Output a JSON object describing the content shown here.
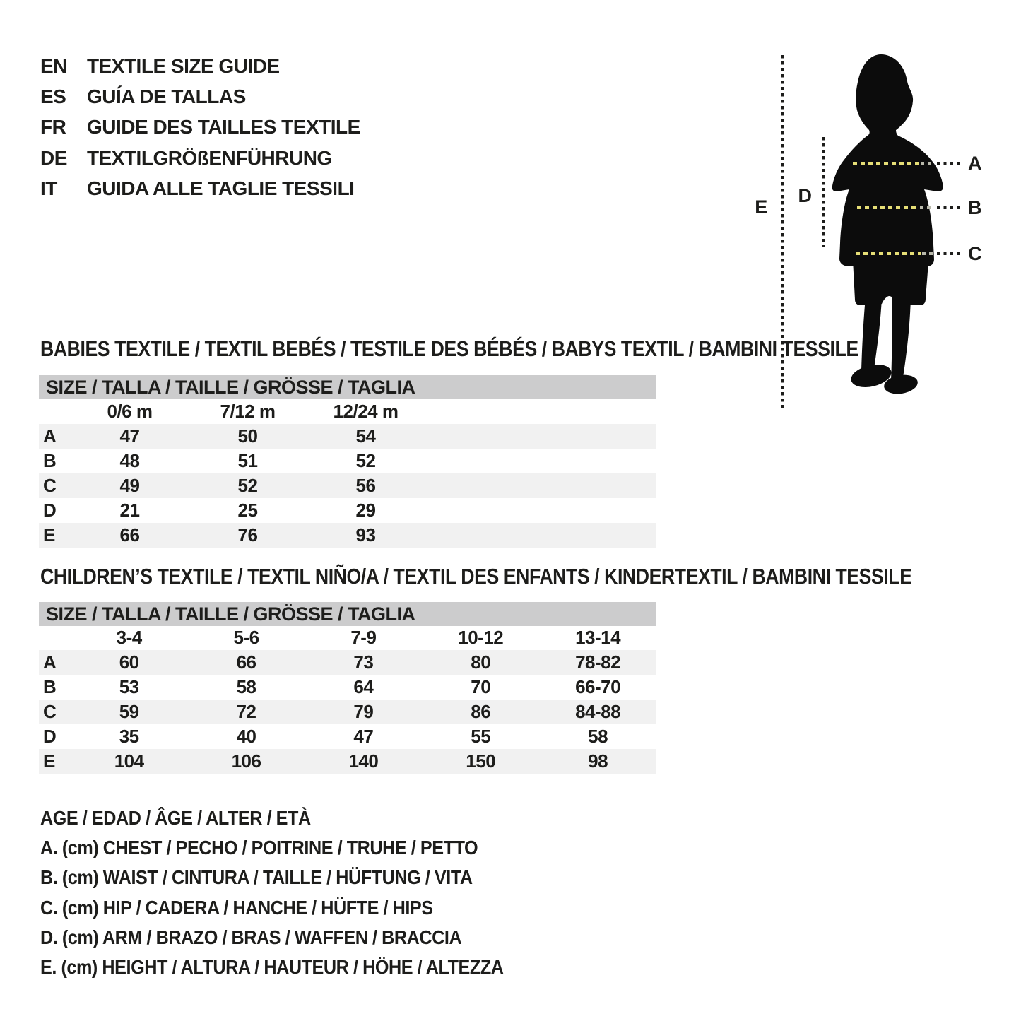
{
  "header": {
    "languages": [
      {
        "code": "EN",
        "title": "TEXTILE SIZE GUIDE"
      },
      {
        "code": "ES",
        "title": "GUÍA DE TALLAS"
      },
      {
        "code": "FR",
        "title": "GUIDE DES TAILLES TEXTILE"
      },
      {
        "code": "DE",
        "title": "TEXTILGRÖßENFÜHRUNG"
      },
      {
        "code": "IT",
        "title": "GUIDA ALLE TAGLIE TESSILI"
      }
    ]
  },
  "figure": {
    "labels": {
      "a": "A",
      "b": "B",
      "c": "C",
      "d": "D",
      "e": "E"
    },
    "dash_color": "#e6de76",
    "silhouette_color": "#0c0c0c"
  },
  "babies": {
    "title": "BABIES TEXTILE / TEXTIL BEBÉS / TESTILE DES BÉBÉS / BABYS TEXTIL / BAMBINI TESSILE",
    "size_header": "SIZE / TALLA / TAILLE / GRÖSSE / TAGLIA",
    "columns": [
      "0/6 m",
      "7/12 m",
      "12/24 m"
    ],
    "rows": [
      {
        "label": "A",
        "values": [
          "47",
          "50",
          "54"
        ]
      },
      {
        "label": "B",
        "values": [
          "48",
          "51",
          "52"
        ]
      },
      {
        "label": "C",
        "values": [
          "49",
          "52",
          "56"
        ]
      },
      {
        "label": "D",
        "values": [
          "21",
          "25",
          "29"
        ]
      },
      {
        "label": "E",
        "values": [
          "66",
          "76",
          "93"
        ]
      }
    ]
  },
  "children": {
    "title": "CHILDREN’S TEXTILE / TEXTIL NIÑO/A / TEXTIL DES ENFANTS / KINDERTEXTIL / BAMBINI TESSILE",
    "size_header": "SIZE / TALLA / TAILLE / GRÖSSE / TAGLIA",
    "columns": [
      "3-4",
      "5-6",
      "7-9",
      "10-12",
      "13-14"
    ],
    "rows": [
      {
        "label": "A",
        "values": [
          "60",
          "66",
          "73",
          "80",
          "78-82"
        ]
      },
      {
        "label": "B",
        "values": [
          "53",
          "58",
          "64",
          "70",
          "66-70"
        ]
      },
      {
        "label": "C",
        "values": [
          "59",
          "72",
          "79",
          "86",
          "84-88"
        ]
      },
      {
        "label": "D",
        "values": [
          "35",
          "40",
          "47",
          "55",
          "58"
        ]
      },
      {
        "label": "E",
        "values": [
          "104",
          "106",
          "140",
          "150",
          "98"
        ]
      }
    ]
  },
  "legend": {
    "lines": [
      "AGE / EDAD / ÂGE / ALTER / ETÀ",
      "A. (cm) CHEST / PECHO / POITRINE / TRUHE / PETTO",
      "B. (cm) WAIST / CINTURA / TAILLE / HÜFTUNG / VITA",
      "C. (cm) HIP / CADERA / HANCHE / HÜFTE / HIPS",
      "D. (cm) ARM / BRAZO / BRAS / WAFFEN / BRACCIA",
      "E. (cm) HEIGHT / ALTURA / HAUTEUR / HÖHE / ALTEZZA"
    ]
  }
}
